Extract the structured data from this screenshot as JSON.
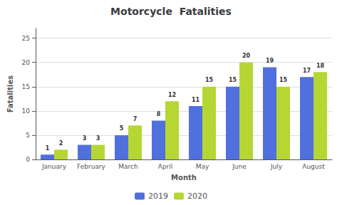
{
  "chart_data": {
    "type": "bar",
    "title": "Motorcycle  Fatalities",
    "xlabel": "Month",
    "ylabel": "Fatalities",
    "categories": [
      "January",
      "February",
      "March",
      "April",
      "May",
      "June",
      "July",
      "August"
    ],
    "series": [
      {
        "name": "2019",
        "values": [
          1,
          3,
          5,
          8,
          11,
          15,
          19,
          17
        ]
      },
      {
        "name": "2020",
        "values": [
          2,
          3,
          7,
          12,
          15,
          20,
          15,
          18
        ]
      }
    ],
    "ylim": [
      0,
      27
    ],
    "yticks": [
      0,
      5,
      10,
      15,
      20,
      25
    ],
    "grid": true,
    "data_labels": true,
    "legend": "bottom"
  }
}
